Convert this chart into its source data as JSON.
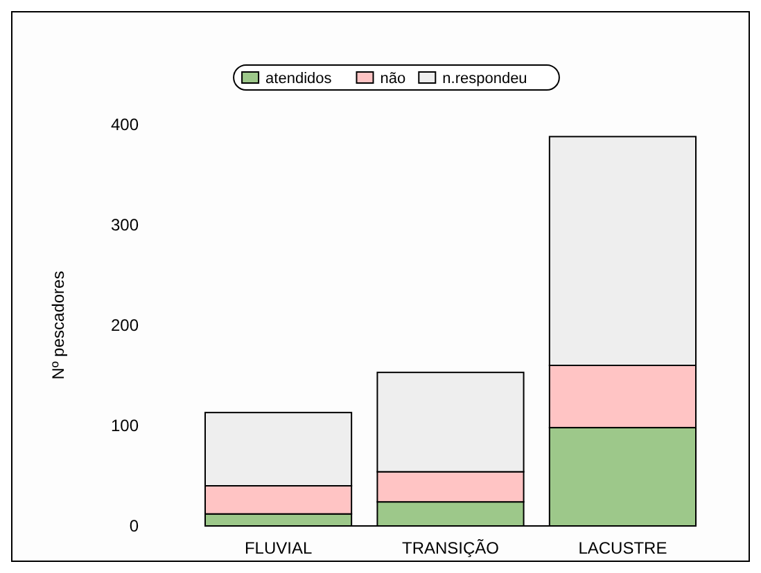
{
  "chart_data": {
    "type": "bar",
    "stacked": true,
    "ylabel": "Nº pescadores",
    "categories": [
      "FLUVIAL",
      "TRANSIÇÃO",
      "LACUSTRE"
    ],
    "series": [
      {
        "name": "atendidos",
        "color": "#9dc88a",
        "values": [
          12,
          24,
          98
        ]
      },
      {
        "name": "não",
        "color": "#ffc4c4",
        "values": [
          28,
          30,
          62
        ]
      },
      {
        "name": "n.respondeu",
        "color": "#eeeeee",
        "values": [
          73,
          99,
          228
        ]
      }
    ],
    "ylim": [
      0,
      400
    ],
    "yticks": [
      0,
      100,
      200,
      300,
      400
    ],
    "grid": false,
    "legend": "top"
  }
}
